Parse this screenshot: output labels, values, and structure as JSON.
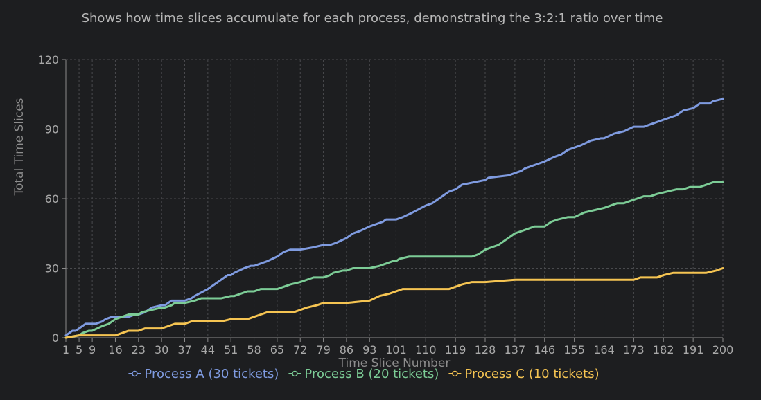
{
  "chart_data": {
    "type": "line",
    "title": "",
    "subtitle": "Shows how time slices accumulate for each process, demonstrating the 3:2:1 ratio over time",
    "xlabel": "Time Slice Number",
    "ylabel": "Total Time Slices",
    "xlim": [
      1,
      200
    ],
    "ylim": [
      0,
      120
    ],
    "x_ticks": [
      "1",
      "5",
      "9",
      "16",
      "23",
      "30",
      "37",
      "44",
      "51",
      "58",
      "65",
      "72",
      "79",
      "86",
      "93",
      "101",
      "110",
      "119",
      "128",
      "137",
      "146",
      "155",
      "164",
      "173",
      "182",
      "191",
      "200"
    ],
    "y_ticks": [
      0,
      30,
      60,
      90,
      120
    ],
    "grid": true,
    "legend_position": "bottom",
    "series": [
      {
        "name": "Process A (30 tickets)",
        "color": "#7f9be0",
        "points": [
          [
            1,
            1
          ],
          [
            2,
            2
          ],
          [
            3,
            3
          ],
          [
            4,
            3
          ],
          [
            5,
            4
          ],
          [
            6,
            5
          ],
          [
            7,
            6
          ],
          [
            9,
            6
          ],
          [
            10,
            6
          ],
          [
            12,
            7
          ],
          [
            13,
            8
          ],
          [
            15,
            9
          ],
          [
            16,
            9
          ],
          [
            20,
            9
          ],
          [
            22,
            10
          ],
          [
            23,
            10
          ],
          [
            25,
            11
          ],
          [
            26,
            12
          ],
          [
            27,
            13
          ],
          [
            30,
            14
          ],
          [
            31,
            14
          ],
          [
            33,
            16
          ],
          [
            37,
            16
          ],
          [
            39,
            17
          ],
          [
            40,
            18
          ],
          [
            44,
            21
          ],
          [
            47,
            24
          ],
          [
            50,
            27
          ],
          [
            51,
            27
          ],
          [
            52,
            28
          ],
          [
            55,
            30
          ],
          [
            57,
            31
          ],
          [
            58,
            31
          ],
          [
            60,
            32
          ],
          [
            62,
            33
          ],
          [
            65,
            35
          ],
          [
            67,
            37
          ],
          [
            69,
            38
          ],
          [
            72,
            38
          ],
          [
            76,
            39
          ],
          [
            79,
            40
          ],
          [
            81,
            40
          ],
          [
            83,
            41
          ],
          [
            86,
            43
          ],
          [
            88,
            45
          ],
          [
            90,
            46
          ],
          [
            93,
            48
          ],
          [
            95,
            49
          ],
          [
            97,
            50
          ],
          [
            98,
            51
          ],
          [
            101,
            51
          ],
          [
            103,
            52
          ],
          [
            106,
            54
          ],
          [
            110,
            57
          ],
          [
            112,
            58
          ],
          [
            115,
            61
          ],
          [
            117,
            63
          ],
          [
            119,
            64
          ],
          [
            121,
            66
          ],
          [
            128,
            68
          ],
          [
            129,
            69
          ],
          [
            135,
            70
          ],
          [
            137,
            71
          ],
          [
            139,
            72
          ],
          [
            140,
            73
          ],
          [
            142,
            74
          ],
          [
            144,
            75
          ],
          [
            146,
            76
          ],
          [
            149,
            78
          ],
          [
            151,
            79
          ],
          [
            153,
            81
          ],
          [
            155,
            82
          ],
          [
            157,
            83
          ],
          [
            160,
            85
          ],
          [
            163,
            86
          ],
          [
            164,
            86
          ],
          [
            167,
            88
          ],
          [
            170,
            89
          ],
          [
            173,
            91
          ],
          [
            176,
            91
          ],
          [
            178,
            92
          ],
          [
            180,
            93
          ],
          [
            182,
            94
          ],
          [
            184,
            95
          ],
          [
            186,
            96
          ],
          [
            188,
            98
          ],
          [
            191,
            99
          ],
          [
            193,
            101
          ],
          [
            196,
            101
          ],
          [
            197,
            102
          ],
          [
            200,
            103
          ]
        ]
      },
      {
        "name": "Process B (20 tickets)",
        "color": "#7ccc96",
        "points": [
          [
            1,
            0
          ],
          [
            5,
            1
          ],
          [
            6,
            2
          ],
          [
            8,
            3
          ],
          [
            9,
            3
          ],
          [
            12,
            5
          ],
          [
            14,
            6
          ],
          [
            16,
            8
          ],
          [
            18,
            9
          ],
          [
            20,
            10
          ],
          [
            23,
            10
          ],
          [
            24,
            11
          ],
          [
            27,
            12
          ],
          [
            30,
            13
          ],
          [
            31,
            13
          ],
          [
            33,
            14
          ],
          [
            34,
            15
          ],
          [
            37,
            15
          ],
          [
            40,
            16
          ],
          [
            42,
            17
          ],
          [
            44,
            17
          ],
          [
            48,
            17
          ],
          [
            51,
            18
          ],
          [
            52,
            18
          ],
          [
            54,
            19
          ],
          [
            56,
            20
          ],
          [
            58,
            20
          ],
          [
            60,
            21
          ],
          [
            65,
            21
          ],
          [
            67,
            22
          ],
          [
            69,
            23
          ],
          [
            72,
            24
          ],
          [
            74,
            25
          ],
          [
            76,
            26
          ],
          [
            79,
            26
          ],
          [
            81,
            27
          ],
          [
            82,
            28
          ],
          [
            85,
            29
          ],
          [
            86,
            29
          ],
          [
            88,
            30
          ],
          [
            93,
            30
          ],
          [
            96,
            31
          ],
          [
            98,
            32
          ],
          [
            100,
            33
          ],
          [
            101,
            33
          ],
          [
            102,
            34
          ],
          [
            105,
            35
          ],
          [
            110,
            35
          ],
          [
            113,
            35
          ],
          [
            119,
            35
          ],
          [
            124,
            35
          ],
          [
            126,
            36
          ],
          [
            127,
            37
          ],
          [
            128,
            38
          ],
          [
            130,
            39
          ],
          [
            132,
            40
          ],
          [
            134,
            42
          ],
          [
            136,
            44
          ],
          [
            137,
            45
          ],
          [
            139,
            46
          ],
          [
            141,
            47
          ],
          [
            143,
            48
          ],
          [
            146,
            48
          ],
          [
            148,
            50
          ],
          [
            150,
            51
          ],
          [
            153,
            52
          ],
          [
            155,
            52
          ],
          [
            158,
            54
          ],
          [
            161,
            55
          ],
          [
            164,
            56
          ],
          [
            166,
            57
          ],
          [
            168,
            58
          ],
          [
            170,
            58
          ],
          [
            172,
            59
          ],
          [
            174,
            60
          ],
          [
            176,
            61
          ],
          [
            178,
            61
          ],
          [
            180,
            62
          ],
          [
            183,
            63
          ],
          [
            186,
            64
          ],
          [
            188,
            64
          ],
          [
            190,
            65
          ],
          [
            193,
            65
          ],
          [
            195,
            66
          ],
          [
            197,
            67
          ],
          [
            200,
            67
          ]
        ]
      },
      {
        "name": "Process C (10 tickets)",
        "color": "#f5c452",
        "points": [
          [
            1,
            0
          ],
          [
            5,
            1
          ],
          [
            9,
            1
          ],
          [
            12,
            1
          ],
          [
            16,
            1
          ],
          [
            18,
            2
          ],
          [
            20,
            3
          ],
          [
            23,
            3
          ],
          [
            25,
            4
          ],
          [
            30,
            4
          ],
          [
            32,
            5
          ],
          [
            34,
            6
          ],
          [
            37,
            6
          ],
          [
            39,
            7
          ],
          [
            44,
            7
          ],
          [
            48,
            7
          ],
          [
            51,
            8
          ],
          [
            56,
            8
          ],
          [
            58,
            9
          ],
          [
            60,
            10
          ],
          [
            62,
            11
          ],
          [
            65,
            11
          ],
          [
            70,
            11
          ],
          [
            72,
            12
          ],
          [
            74,
            13
          ],
          [
            77,
            14
          ],
          [
            79,
            15
          ],
          [
            86,
            15
          ],
          [
            93,
            16
          ],
          [
            96,
            18
          ],
          [
            99,
            19
          ],
          [
            101,
            20
          ],
          [
            103,
            21
          ],
          [
            110,
            21
          ],
          [
            117,
            21
          ],
          [
            119,
            22
          ],
          [
            121,
            23
          ],
          [
            124,
            24
          ],
          [
            128,
            24
          ],
          [
            137,
            25
          ],
          [
            146,
            25
          ],
          [
            155,
            25
          ],
          [
            164,
            25
          ],
          [
            171,
            25
          ],
          [
            173,
            25
          ],
          [
            175,
            26
          ],
          [
            180,
            26
          ],
          [
            182,
            27
          ],
          [
            185,
            28
          ],
          [
            191,
            28
          ],
          [
            195,
            28
          ],
          [
            198,
            29
          ],
          [
            200,
            30
          ]
        ]
      }
    ]
  }
}
